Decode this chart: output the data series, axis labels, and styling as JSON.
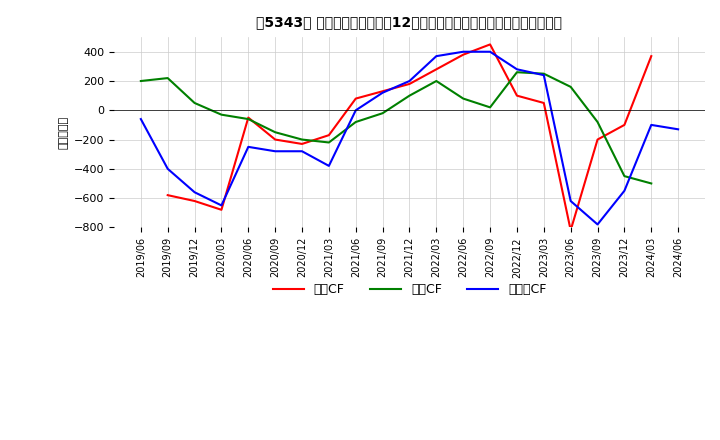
{
  "title2": "【5343】 キャッシュフローの12か月移動合計の対前年同期増減額の推移",
  "ylabel": "（百万円）",
  "ylim": [
    -800,
    500
  ],
  "yticks": [
    -800,
    -600,
    -400,
    -200,
    0,
    200,
    400
  ],
  "dates": [
    "2019/06",
    "2019/09",
    "2019/12",
    "2020/03",
    "2020/06",
    "2020/09",
    "2020/12",
    "2021/03",
    "2021/06",
    "2021/09",
    "2021/12",
    "2022/03",
    "2022/06",
    "2022/09",
    "2022/12",
    "2023/03",
    "2023/06",
    "2023/09",
    "2023/12",
    "2024/03",
    "2024/06"
  ],
  "operating_cf": [
    null,
    -580,
    -620,
    -680,
    -50,
    -200,
    -230,
    -170,
    80,
    130,
    180,
    280,
    380,
    450,
    100,
    50,
    -820,
    -200,
    -100,
    370,
    null
  ],
  "investing_cf": [
    200,
    220,
    50,
    -30,
    -60,
    -150,
    -200,
    -220,
    -80,
    -20,
    100,
    200,
    80,
    20,
    260,
    250,
    160,
    -80,
    -450,
    -500,
    null
  ],
  "free_cf": [
    -60,
    -400,
    -560,
    -650,
    -250,
    -280,
    -280,
    -380,
    0,
    120,
    200,
    370,
    400,
    400,
    280,
    240,
    -620,
    -780,
    -550,
    -100,
    -130
  ],
  "operating_color": "#ff0000",
  "investing_color": "#008000",
  "free_color": "#0000ff",
  "legend_labels": [
    "営業CF",
    "投資CF",
    "フリーCF"
  ],
  "background_color": "#ffffff",
  "grid_color": "#cccccc"
}
